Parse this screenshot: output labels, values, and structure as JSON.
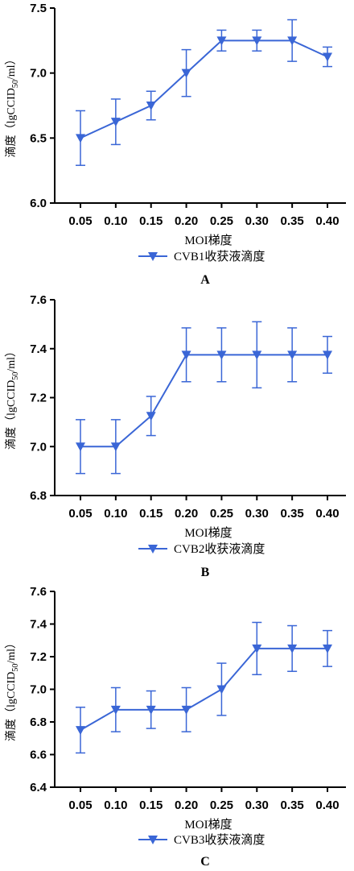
{
  "chart_data": [
    {
      "type": "line",
      "panel_label": "A",
      "categories": [
        "0.05",
        "0.10",
        "0.15",
        "0.20",
        "0.25",
        "0.30",
        "0.35",
        "0.40"
      ],
      "xlabel": "MOI梯度",
      "ylabel_prefix": "滴度（lgCCID",
      "ylabel_sub": "50",
      "ylabel_suffix": "/ml）",
      "yticks": [
        "6.0",
        "6.5",
        "7.0",
        "7.5"
      ],
      "ylim": [
        6.0,
        7.5
      ],
      "series": [
        {
          "name": "CVB1收获液滴度",
          "values": [
            6.5,
            6.625,
            6.75,
            7.0,
            7.25,
            7.25,
            7.25,
            7.125
          ],
          "err_low": [
            6.29,
            6.45,
            6.64,
            6.82,
            7.17,
            7.17,
            7.09,
            7.05
          ],
          "err_high": [
            6.71,
            6.8,
            6.86,
            7.18,
            7.33,
            7.33,
            7.41,
            7.2
          ]
        }
      ],
      "grid": false,
      "legend_position": "bottom",
      "color": "#3a66d6"
    },
    {
      "type": "line",
      "panel_label": "B",
      "categories": [
        "0.05",
        "0.10",
        "0.15",
        "0.20",
        "0.25",
        "0.30",
        "0.35",
        "0.40"
      ],
      "xlabel": "MOI梯度",
      "ylabel_prefix": "滴度（lgCCID",
      "ylabel_sub": "50",
      "ylabel_suffix": "/ml）",
      "yticks": [
        "6.8",
        "7.0",
        "7.2",
        "7.4",
        "7.6"
      ],
      "ylim": [
        6.8,
        7.6
      ],
      "series": [
        {
          "name": "CVB2收获液滴度",
          "values": [
            7.0,
            7.0,
            7.125,
            7.375,
            7.375,
            7.375,
            7.375,
            7.375
          ],
          "err_low": [
            6.89,
            6.89,
            7.045,
            7.265,
            7.265,
            7.24,
            7.265,
            7.3
          ],
          "err_high": [
            7.11,
            7.11,
            7.205,
            7.485,
            7.485,
            7.51,
            7.485,
            7.45
          ]
        }
      ],
      "grid": false,
      "legend_position": "bottom",
      "color": "#3a66d6"
    },
    {
      "type": "line",
      "panel_label": "C",
      "categories": [
        "0.05",
        "0.10",
        "0.15",
        "0.20",
        "0.25",
        "0.30",
        "0.35",
        "0.40"
      ],
      "xlabel": "MOI梯度",
      "ylabel_prefix": "滴度（lgCCID",
      "ylabel_sub": "50",
      "ylabel_suffix": "/ml）",
      "yticks": [
        "6.4",
        "6.6",
        "6.8",
        "7.0",
        "7.2",
        "7.4",
        "7.6"
      ],
      "ylim": [
        6.4,
        7.6
      ],
      "series": [
        {
          "name": "CVB3收获液滴度",
          "values": [
            6.75,
            6.875,
            6.875,
            6.875,
            7.0,
            7.25,
            7.25,
            7.25
          ],
          "err_low": [
            6.61,
            6.74,
            6.76,
            6.74,
            6.84,
            7.09,
            7.11,
            7.14
          ],
          "err_high": [
            6.89,
            7.01,
            6.99,
            7.01,
            7.16,
            7.41,
            7.39,
            7.36
          ]
        }
      ],
      "grid": false,
      "legend_position": "bottom",
      "color": "#3a66d6"
    }
  ]
}
